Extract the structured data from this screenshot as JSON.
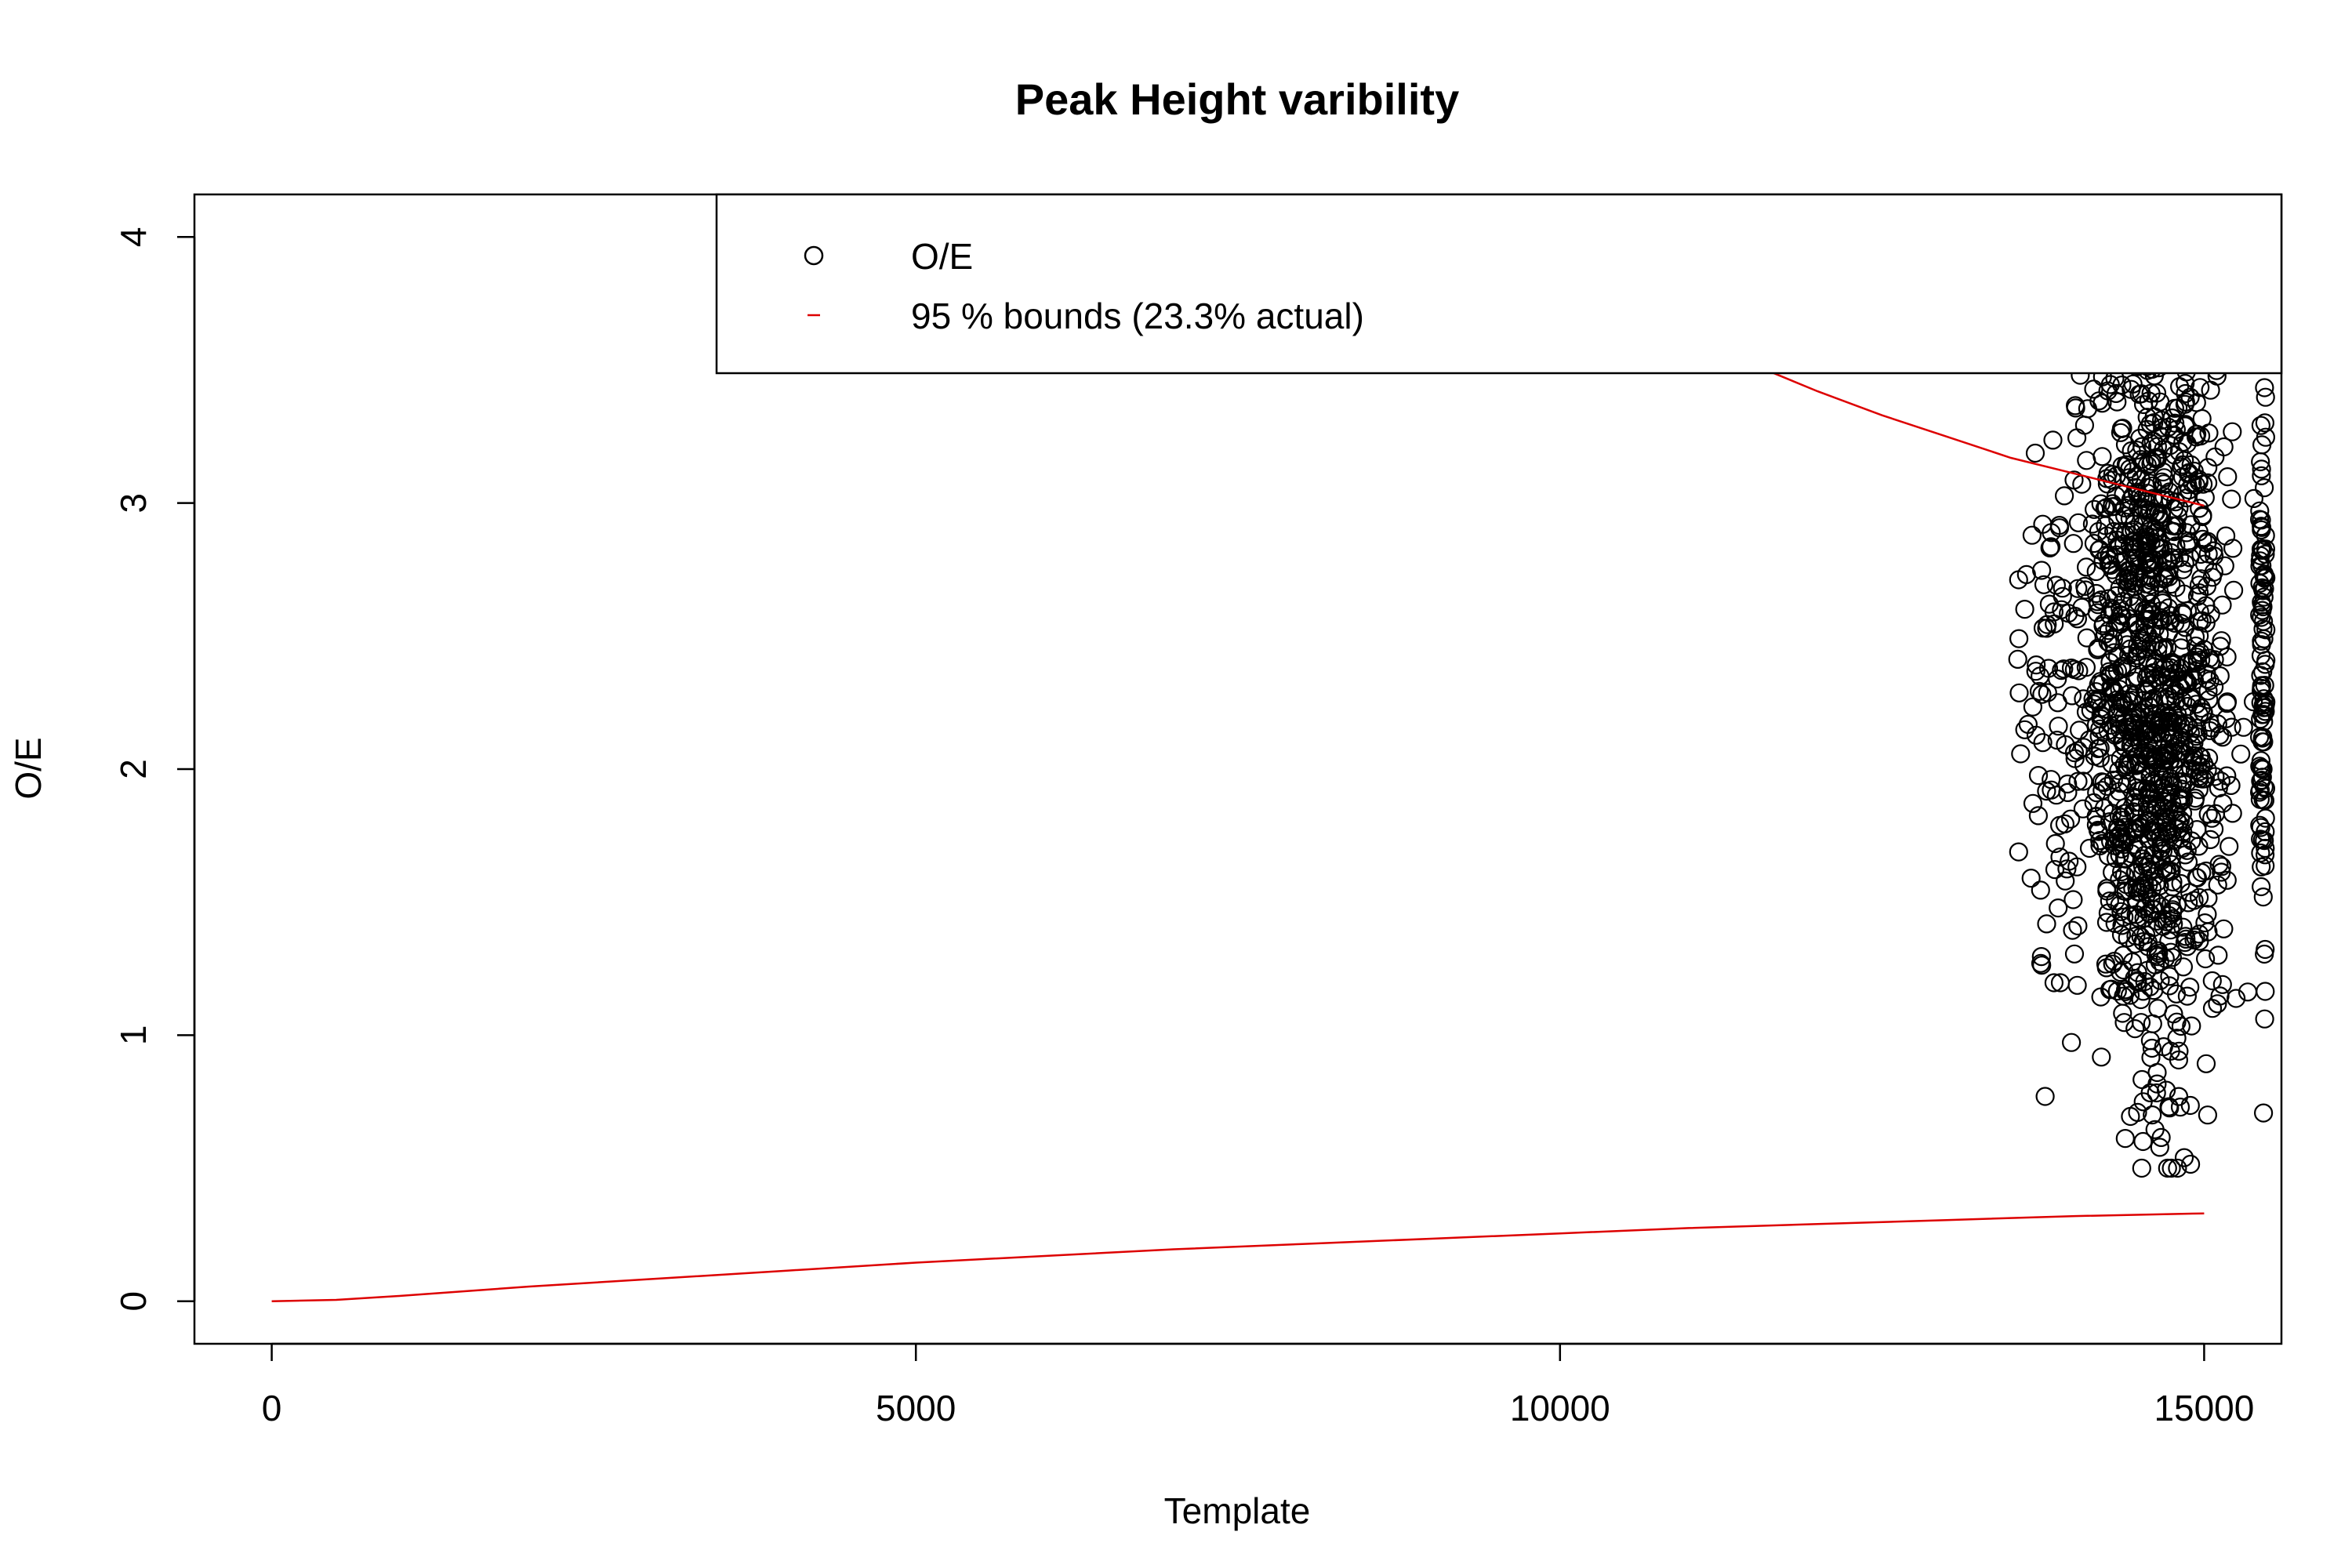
{
  "chart_data": {
    "type": "scatter",
    "title": "Peak Height varibility",
    "xlabel": "Template",
    "ylabel": "O/E",
    "xlim": [
      -600,
      15600
    ],
    "ylim": [
      -0.16,
      4.16
    ],
    "x_ticks": [
      0,
      5000,
      10000,
      15000
    ],
    "y_ticks": [
      0,
      1,
      2,
      3,
      4
    ],
    "x_tick_labels": [
      "0",
      "5000",
      "10000",
      "15000"
    ],
    "y_tick_labels": [
      "0",
      "1",
      "2",
      "3",
      "4"
    ],
    "grid": false,
    "legend": {
      "position": "top-right",
      "entries": [
        {
          "symbol": "o",
          "label": "O/E",
          "color": "#000000"
        },
        {
          "symbol": "-",
          "label": "95 % bounds (23.3% actual)",
          "color": "#dd0000"
        }
      ]
    },
    "series": [
      {
        "name": "O/E",
        "kind": "points",
        "color": "#000000",
        "cluster": {
          "x_range": [
            13550,
            15500
          ],
          "x_center": 14600,
          "y_range": [
            0.5,
            4.16
          ],
          "y_center": 2.3
        }
      },
      {
        "name": "95 % bounds (23.3% actual)",
        "kind": "line",
        "color": "#dd0000",
        "lower": {
          "x": [
            0,
            500,
            1000,
            2000,
            3000,
            4000,
            5000,
            6000,
            7000,
            8000,
            9000,
            10000,
            11000,
            12000,
            13000,
            14000,
            15000
          ],
          "y": [
            0,
            0.005,
            0.02,
            0.055,
            0.085,
            0.115,
            0.145,
            0.17,
            0.195,
            0.215,
            0.235,
            0.255,
            0.275,
            0.29,
            0.305,
            0.32,
            0.33
          ]
        },
        "upper": {
          "x": [
            11500,
            12000,
            12500,
            13000,
            13500,
            14000,
            14500,
            15000
          ],
          "y": [
            3.52,
            3.42,
            3.33,
            3.25,
            3.17,
            3.11,
            3.05,
            2.99
          ]
        }
      }
    ]
  }
}
